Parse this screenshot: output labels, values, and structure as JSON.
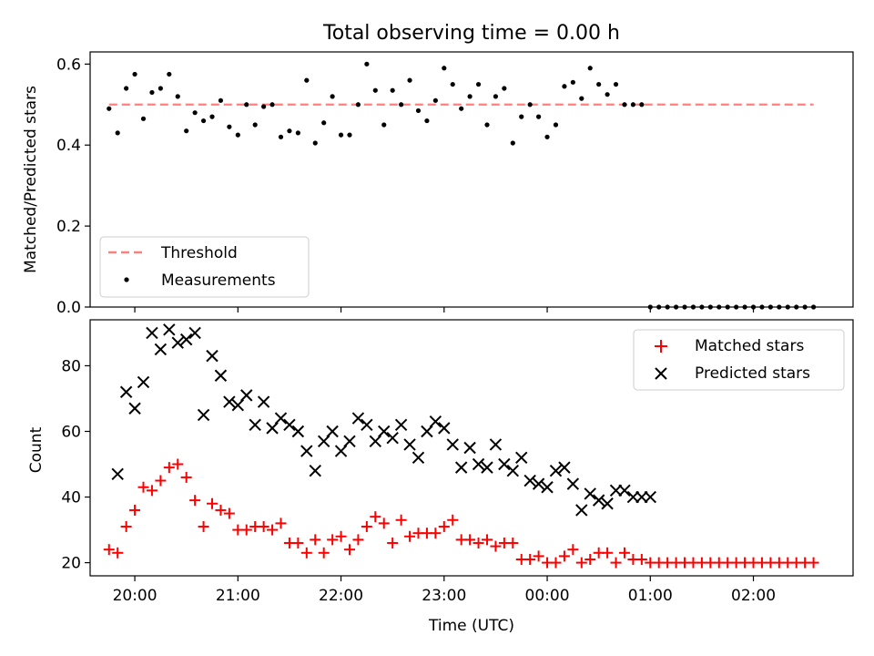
{
  "figure": {
    "title": "Total observing time = 0.00 h"
  },
  "chart_data": [
    {
      "type": "scatter",
      "panel": "top",
      "ylabel": "Matched/Predicted stars",
      "xlabel": "",
      "ylim": [
        0.0,
        0.63
      ],
      "yticks": [
        0.0,
        0.2,
        0.4,
        0.6
      ],
      "ytick_labels": [
        "0.0",
        "0.2",
        "0.4",
        "0.6"
      ],
      "xlim": [
        "19:34",
        "02:58"
      ],
      "xticks": [
        "20:00",
        "21:00",
        "22:00",
        "23:00",
        "00:00",
        "01:00",
        "02:00"
      ],
      "grid": false,
      "legend_position": "lower-left",
      "threshold": {
        "name": "Threshold",
        "value": 0.5,
        "x_start": "19:45",
        "x_end": "02:35",
        "color": "#ff7f7f",
        "style": "dashed"
      },
      "series": [
        {
          "name": "Measurements",
          "color": "#000000",
          "marker": "dot",
          "x": [
            "19:45",
            "19:50",
            "19:55",
            "20:00",
            "20:05",
            "20:10",
            "20:15",
            "20:20",
            "20:25",
            "20:30",
            "20:35",
            "20:40",
            "20:45",
            "20:50",
            "20:55",
            "21:00",
            "21:05",
            "21:10",
            "21:15",
            "21:20",
            "21:25",
            "21:30",
            "21:35",
            "21:40",
            "21:45",
            "21:50",
            "21:55",
            "22:00",
            "22:05",
            "22:10",
            "22:15",
            "22:20",
            "22:25",
            "22:30",
            "22:35",
            "22:40",
            "22:45",
            "22:50",
            "22:55",
            "23:00",
            "23:05",
            "23:10",
            "23:15",
            "23:20",
            "23:25",
            "23:30",
            "23:35",
            "23:40",
            "23:45",
            "23:50",
            "23:55",
            "00:00",
            "00:05",
            "00:10",
            "00:15",
            "00:20",
            "00:25",
            "00:30",
            "00:35",
            "00:40",
            "00:45",
            "00:50",
            "00:55",
            "01:00",
            "01:05",
            "01:10",
            "01:15",
            "01:20",
            "01:25",
            "01:30",
            "01:35",
            "01:40",
            "01:45",
            "01:50",
            "01:55",
            "02:00",
            "02:05",
            "02:10",
            "02:15",
            "02:20",
            "02:25",
            "02:30",
            "02:35"
          ],
          "y": [
            0.49,
            0.43,
            0.54,
            0.575,
            0.465,
            0.53,
            0.54,
            0.575,
            0.52,
            0.435,
            0.48,
            0.46,
            0.47,
            0.51,
            0.445,
            0.425,
            0.5,
            0.45,
            0.495,
            0.5,
            0.42,
            0.435,
            0.43,
            0.56,
            0.405,
            0.455,
            0.52,
            0.425,
            0.425,
            0.5,
            0.6,
            0.535,
            0.45,
            0.535,
            0.5,
            0.56,
            0.485,
            0.46,
            0.51,
            0.59,
            0.55,
            0.49,
            0.52,
            0.55,
            0.45,
            0.52,
            0.54,
            0.405,
            0.47,
            0.5,
            0.47,
            0.42,
            0.45,
            0.545,
            0.555,
            0.515,
            0.59,
            0.55,
            0.525,
            0.55,
            0.5,
            0.5,
            0.5,
            0.0,
            0.0,
            0.0,
            0.0,
            0.0,
            0.0,
            0.0,
            0.0,
            0.0,
            0.0,
            0.0,
            0.0,
            0.0,
            0.0,
            0.0,
            0.0,
            0.0,
            0.0,
            0.0,
            0.0
          ]
        }
      ]
    },
    {
      "type": "scatter",
      "panel": "bottom",
      "ylabel": "Count",
      "xlabel": "Time (UTC)",
      "ylim": [
        16,
        94
      ],
      "yticks": [
        20,
        40,
        60,
        80
      ],
      "ytick_labels": [
        "20",
        "40",
        "60",
        "80"
      ],
      "xlim": [
        "19:34",
        "02:58"
      ],
      "xticks": [
        "20:00",
        "21:00",
        "22:00",
        "23:00",
        "00:00",
        "01:00",
        "02:00"
      ],
      "xtick_labels": [
        "20:00",
        "21:00",
        "22:00",
        "23:00",
        "00:00",
        "01:00",
        "02:00"
      ],
      "grid": false,
      "legend_position": "upper-right",
      "series": [
        {
          "name": "Matched stars",
          "color": "#ff0000",
          "marker": "plus",
          "x": [
            "19:45",
            "19:50",
            "19:55",
            "20:00",
            "20:05",
            "20:10",
            "20:15",
            "20:20",
            "20:25",
            "20:30",
            "20:35",
            "20:40",
            "20:45",
            "20:50",
            "20:55",
            "21:00",
            "21:05",
            "21:10",
            "21:15",
            "21:20",
            "21:25",
            "21:30",
            "21:35",
            "21:40",
            "21:45",
            "21:50",
            "21:55",
            "22:00",
            "22:05",
            "22:10",
            "22:15",
            "22:20",
            "22:25",
            "22:30",
            "22:35",
            "22:40",
            "22:45",
            "22:50",
            "22:55",
            "23:00",
            "23:05",
            "23:10",
            "23:15",
            "23:20",
            "23:25",
            "23:30",
            "23:35",
            "23:40",
            "23:45",
            "23:50",
            "23:55",
            "00:00",
            "00:05",
            "00:10",
            "00:15",
            "00:20",
            "00:25",
            "00:30",
            "00:35",
            "00:40",
            "00:45",
            "00:50",
            "00:55",
            "01:00",
            "01:05",
            "01:10",
            "01:15",
            "01:20",
            "01:25",
            "01:30",
            "01:35",
            "01:40",
            "01:45",
            "01:50",
            "01:55",
            "02:00",
            "02:05",
            "02:10",
            "02:15",
            "02:20",
            "02:25",
            "02:30",
            "02:35"
          ],
          "y": [
            24,
            23,
            31,
            36,
            43,
            42,
            45,
            49,
            50,
            46,
            39,
            31,
            38,
            36,
            35,
            30,
            30,
            31,
            31,
            30,
            32,
            26,
            26,
            23,
            27,
            23,
            27,
            28,
            24,
            27,
            31,
            34,
            32,
            26,
            33,
            28,
            29,
            29,
            29,
            31,
            33,
            27,
            27,
            26,
            27,
            25,
            26,
            26,
            21,
            21,
            22,
            20,
            20,
            22,
            24,
            20,
            21,
            23,
            23,
            20,
            23,
            21,
            21,
            20,
            20,
            20,
            20,
            20,
            20,
            20,
            20,
            20,
            20,
            20,
            20,
            20,
            20,
            20,
            20,
            20,
            20,
            20,
            20
          ]
        },
        {
          "name": "Predicted stars",
          "color": "#000000",
          "marker": "x",
          "x": [
            "19:50",
            "19:55",
            "20:00",
            "20:05",
            "20:10",
            "20:15",
            "20:20",
            "20:25",
            "20:30",
            "20:35",
            "20:40",
            "20:45",
            "20:50",
            "20:55",
            "21:00",
            "21:05",
            "21:10",
            "21:15",
            "21:20",
            "21:25",
            "21:30",
            "21:35",
            "21:40",
            "21:45",
            "21:50",
            "21:55",
            "22:00",
            "22:05",
            "22:10",
            "22:15",
            "22:20",
            "22:25",
            "22:30",
            "22:35",
            "22:40",
            "22:45",
            "22:50",
            "22:55",
            "23:00",
            "23:05",
            "23:10",
            "23:15",
            "23:20",
            "23:25",
            "23:30",
            "23:35",
            "23:40",
            "23:45",
            "23:50",
            "23:55",
            "00:00",
            "00:05",
            "00:10",
            "00:15",
            "00:20",
            "00:25",
            "00:30",
            "00:35",
            "00:40",
            "00:45",
            "00:50",
            "00:55",
            "01:00"
          ],
          "y": [
            47,
            72,
            67,
            75,
            90,
            85,
            91,
            87,
            88,
            90,
            65,
            83,
            77,
            69,
            68,
            71,
            62,
            69,
            61,
            64,
            62,
            60,
            54,
            48,
            57,
            60,
            54,
            57,
            64,
            62,
            57,
            60,
            58,
            62,
            56,
            52,
            60,
            63,
            61,
            56,
            49,
            55,
            50,
            49,
            56,
            50,
            48,
            52,
            45,
            44,
            43,
            48,
            49,
            44,
            36,
            41,
            39,
            38,
            42,
            42,
            40,
            40,
            40
          ]
        }
      ]
    }
  ]
}
